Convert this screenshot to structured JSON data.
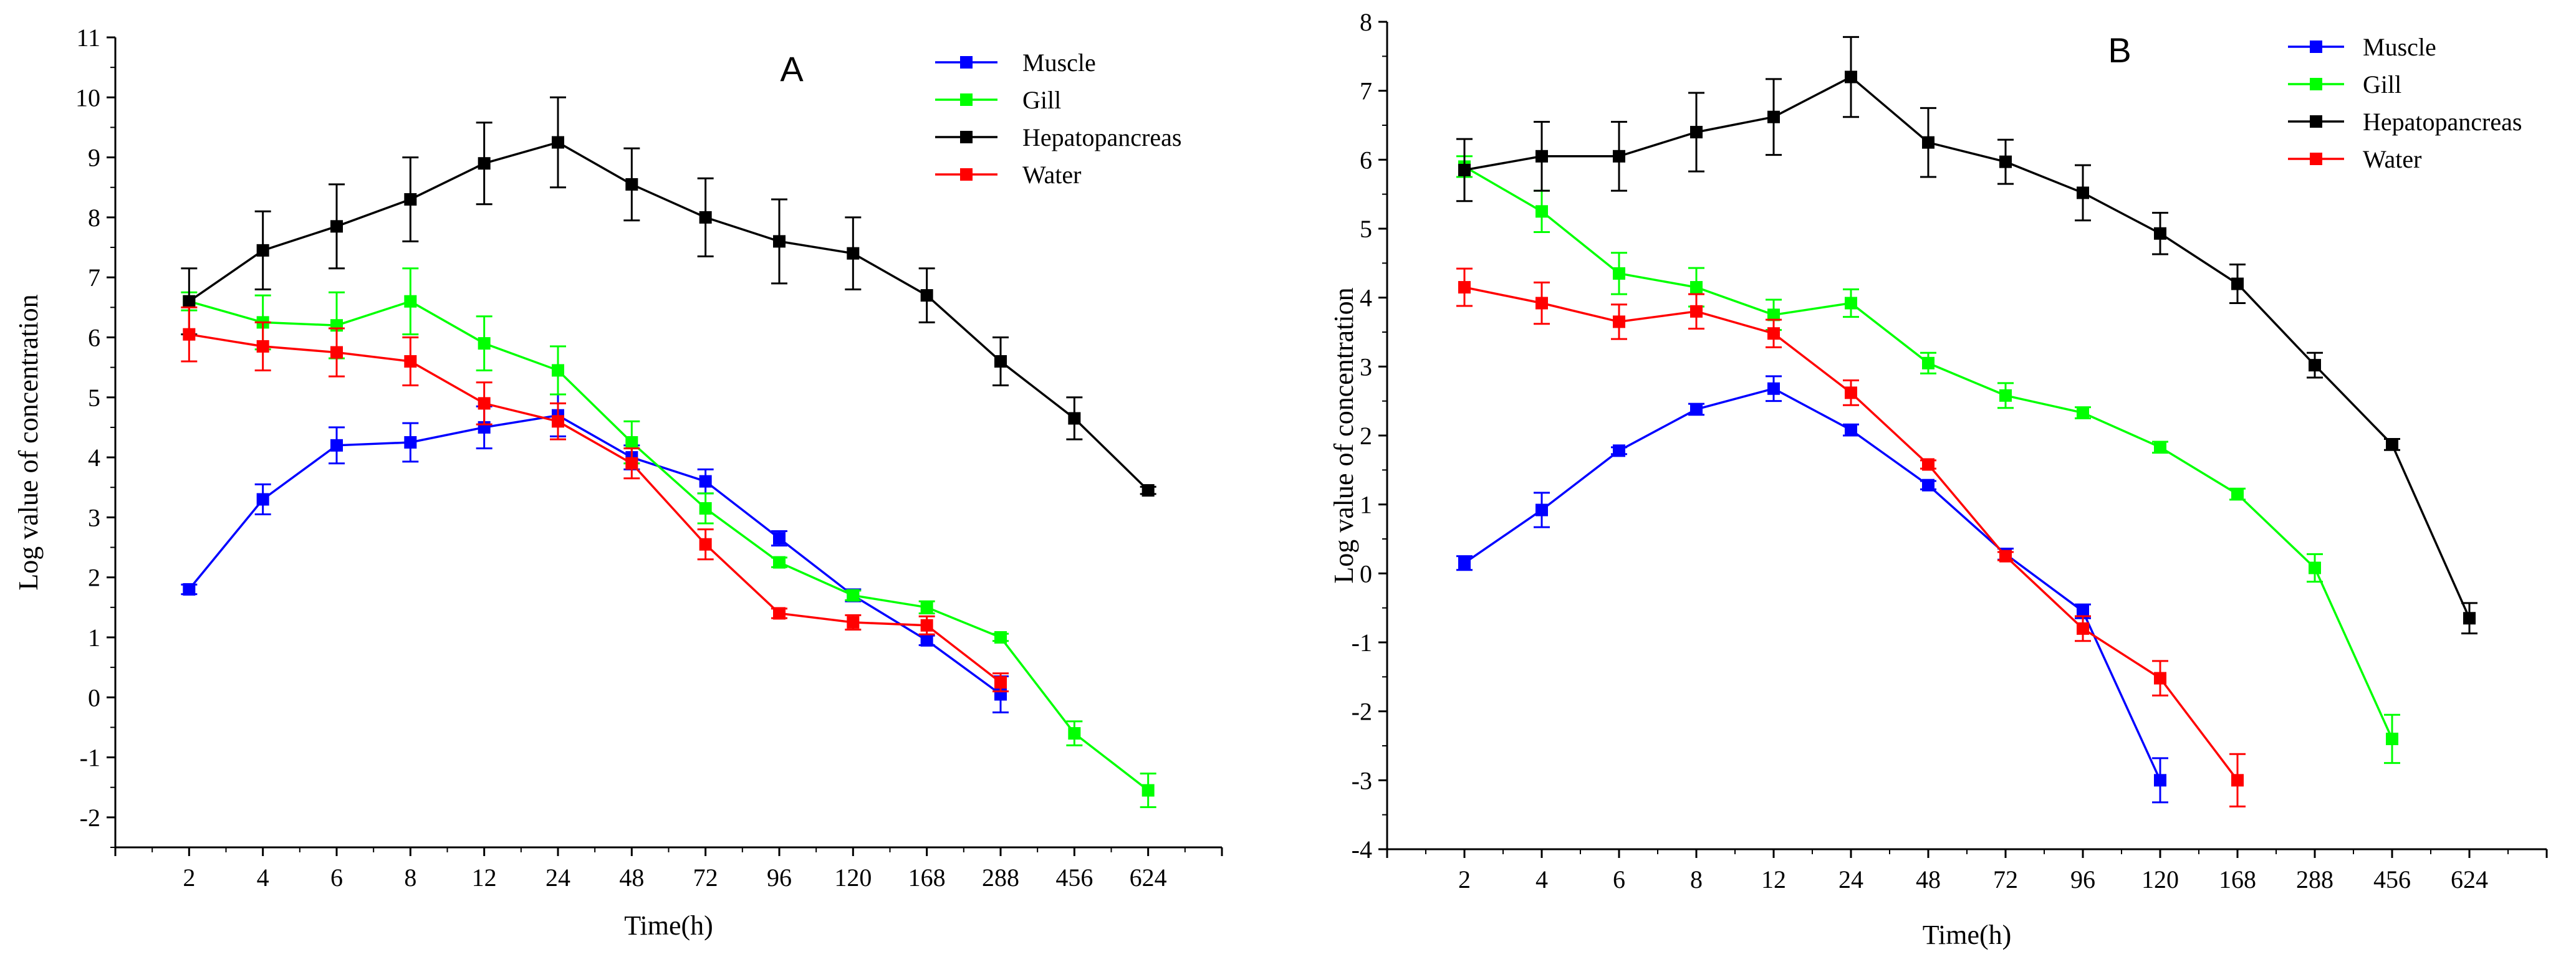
{
  "chart_data": [
    {
      "type": "line",
      "panel_label": "A",
      "xlabel": "Time(h)",
      "ylabel": "Log value of concentration",
      "categories": [
        "2",
        "4",
        "6",
        "8",
        "12",
        "24",
        "48",
        "72",
        "96",
        "120",
        "168",
        "288",
        "456",
        "624"
      ],
      "ylim": [
        -2.5,
        11
      ],
      "yticks": [
        -2,
        -1,
        0,
        1,
        2,
        3,
        4,
        5,
        6,
        7,
        8,
        9,
        10,
        11
      ],
      "grid": false,
      "legend_position": "top-right",
      "series": [
        {
          "name": "Muscle",
          "color": "#0000ff",
          "values": [
            1.8,
            3.3,
            4.2,
            4.25,
            4.5,
            4.7,
            4.0,
            3.6,
            2.65,
            1.7,
            0.95,
            0.05,
            null,
            null
          ],
          "errors": [
            0.08,
            0.25,
            0.3,
            0.32,
            0.35,
            0.35,
            0.2,
            0.2,
            0.12,
            0.1,
            0.08,
            0.3,
            null,
            null
          ]
        },
        {
          "name": "Gill",
          "color": "#00ff00",
          "values": [
            6.6,
            6.25,
            6.2,
            6.6,
            5.9,
            5.45,
            4.25,
            3.15,
            2.25,
            1.7,
            1.5,
            1.0,
            -0.6,
            -1.55
          ],
          "errors": [
            0.15,
            0.45,
            0.55,
            0.55,
            0.45,
            0.4,
            0.35,
            0.25,
            0.08,
            0.08,
            0.1,
            0.06,
            0.2,
            0.28
          ]
        },
        {
          "name": "Hepatopancreas",
          "color": "#000000",
          "values": [
            6.6,
            7.45,
            7.85,
            8.3,
            8.9,
            9.25,
            8.55,
            8.0,
            7.6,
            7.4,
            6.7,
            5.6,
            4.65,
            3.45
          ],
          "errors": [
            0.55,
            0.65,
            0.7,
            0.7,
            0.68,
            0.75,
            0.6,
            0.65,
            0.7,
            0.6,
            0.45,
            0.4,
            0.35,
            0.06
          ]
        },
        {
          "name": "Water",
          "color": "#ff0000",
          "values": [
            6.05,
            5.85,
            5.75,
            5.6,
            4.9,
            4.6,
            3.9,
            2.55,
            1.4,
            1.25,
            1.2,
            0.25,
            null,
            null
          ],
          "errors": [
            0.45,
            0.4,
            0.4,
            0.4,
            0.35,
            0.3,
            0.25,
            0.25,
            0.08,
            0.12,
            0.15,
            0.15,
            null,
            null
          ]
        }
      ]
    },
    {
      "type": "line",
      "panel_label": "B",
      "xlabel": "Time(h)",
      "ylabel": "Log value of concentration",
      "categories": [
        "2",
        "4",
        "6",
        "8",
        "12",
        "24",
        "48",
        "72",
        "96",
        "120",
        "168",
        "288",
        "456",
        "624"
      ],
      "ylim": [
        -4,
        8
      ],
      "yticks": [
        -4,
        -3,
        -2,
        -1,
        0,
        1,
        2,
        3,
        4,
        5,
        6,
        7,
        8
      ],
      "grid": false,
      "legend_position": "top-right",
      "series": [
        {
          "name": "Muscle",
          "color": "#0000ff",
          "values": [
            0.15,
            0.92,
            1.78,
            2.38,
            2.68,
            2.08,
            1.28,
            0.28,
            -0.55,
            -3.0,
            null,
            null,
            null,
            null
          ],
          "errors": [
            0.1,
            0.25,
            0.05,
            0.08,
            0.18,
            0.08,
            0.06,
            0.08,
            0.1,
            0.32,
            null,
            null,
            null,
            null
          ]
        },
        {
          "name": "Gill",
          "color": "#00ff00",
          "values": [
            5.9,
            5.25,
            4.35,
            4.15,
            3.75,
            3.92,
            3.05,
            2.58,
            2.33,
            1.83,
            1.15,
            0.08,
            -2.4,
            null
          ],
          "errors": [
            0.15,
            0.3,
            0.3,
            0.28,
            0.22,
            0.2,
            0.15,
            0.18,
            0.08,
            0.08,
            0.08,
            0.2,
            0.35,
            null
          ]
        },
        {
          "name": "Hepatopancreas",
          "color": "#000000",
          "values": [
            5.85,
            6.05,
            6.05,
            6.4,
            6.62,
            7.2,
            6.25,
            5.97,
            5.52,
            4.93,
            4.2,
            3.02,
            1.87,
            -0.65
          ],
          "errors": [
            0.45,
            0.5,
            0.5,
            0.57,
            0.55,
            0.58,
            0.5,
            0.32,
            0.4,
            0.3,
            0.28,
            0.18,
            0.08,
            0.22
          ]
        },
        {
          "name": "Water",
          "color": "#ff0000",
          "values": [
            4.15,
            3.92,
            3.65,
            3.8,
            3.48,
            2.62,
            1.58,
            0.25,
            -0.8,
            -1.52,
            -3.0,
            null,
            null,
            null
          ],
          "errors": [
            0.27,
            0.3,
            0.25,
            0.25,
            0.2,
            0.18,
            0.06,
            0.06,
            0.18,
            0.25,
            0.38,
            null,
            null,
            null
          ]
        }
      ]
    }
  ]
}
